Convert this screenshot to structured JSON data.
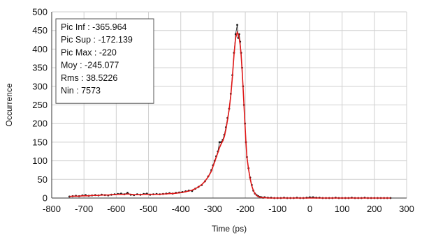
{
  "chart_data": {
    "type": "line",
    "title": "",
    "xlabel": "Time (ps)",
    "ylabel": "Occurrence",
    "xlim": [
      -800,
      300
    ],
    "ylim": [
      0,
      500
    ],
    "xticks": [
      -800,
      -700,
      -600,
      -500,
      -400,
      -300,
      -200,
      -100,
      0,
      100,
      200,
      300
    ],
    "yticks": [
      0,
      50,
      100,
      150,
      200,
      250,
      300,
      350,
      400,
      450,
      500
    ],
    "grid": true,
    "legend": "none",
    "colors": {
      "measured": "#1a1a1a",
      "fit": "#e01818",
      "grid": "#cfcfcf"
    },
    "stats_box": {
      "lines": [
        "Pic Inf : -365.964",
        "Pic Sup : -172.139",
        "Pic Max : -220",
        "Moy : -245.077",
        "Rms : 38.5226",
        "Nin : 7573"
      ]
    },
    "series": [
      {
        "style": "points",
        "x": [
          -745,
          -735,
          -725,
          -715,
          -705,
          -695,
          -685,
          -675,
          -665,
          -655,
          -645,
          -635,
          -625,
          -615,
          -605,
          -595,
          -585,
          -575,
          -565,
          -555,
          -545,
          -535,
          -525,
          -515,
          -505,
          -495,
          -485,
          -475,
          -465,
          -455,
          -445,
          -435,
          -425,
          -415,
          -405,
          -395,
          -385,
          -375,
          -365,
          -355,
          -345,
          -335,
          -325,
          -315,
          -305,
          -300,
          -295,
          -290,
          -285,
          -280,
          -275,
          -270,
          -265,
          -260,
          -255,
          -250,
          -245,
          -240,
          -235,
          -230,
          -225,
          -222,
          -219,
          -216,
          -213,
          -210,
          -207,
          -204,
          -201,
          -198,
          -195,
          -190,
          -185,
          -180,
          -175,
          -170,
          -165,
          -160,
          -155,
          -150,
          -145,
          -140,
          -130,
          -120,
          -110,
          -100,
          -90,
          -80,
          -70,
          -60,
          -50,
          -40,
          -30,
          -20,
          -10,
          0,
          10,
          20,
          30,
          40,
          50,
          60,
          70,
          80,
          90,
          100,
          110,
          120,
          130,
          140,
          150,
          160,
          170,
          180,
          190,
          200,
          210,
          220,
          230,
          240,
          250
        ],
        "y": [
          4,
          5,
          6,
          5,
          7,
          8,
          6,
          7,
          8,
          7,
          9,
          8,
          7,
          9,
          10,
          11,
          12,
          10,
          14,
          9,
          8,
          10,
          9,
          11,
          12,
          9,
          10,
          11,
          10,
          11,
          12,
          13,
          12,
          14,
          15,
          16,
          18,
          20,
          19,
          25,
          30,
          35,
          45,
          58,
          75,
          88,
          100,
          112,
          125,
          150,
          150,
          156,
          170,
          190,
          215,
          240,
          280,
          330,
          390,
          440,
          465,
          430,
          440,
          420,
          390,
          350,
          300,
          250,
          200,
          150,
          110,
          80,
          55,
          35,
          20,
          12,
          8,
          5,
          3,
          2,
          1,
          2,
          1,
          1,
          0,
          0,
          0,
          1,
          0,
          0,
          0,
          1,
          0,
          0,
          1,
          2,
          2,
          1,
          1,
          0,
          0,
          0,
          0,
          1,
          0,
          0,
          0,
          0,
          1,
          0,
          0,
          0,
          1,
          0,
          0,
          0,
          0,
          0,
          0,
          0,
          0
        ]
      },
      {
        "style": "line",
        "x": [
          -745,
          -735,
          -725,
          -715,
          -705,
          -695,
          -685,
          -675,
          -665,
          -655,
          -645,
          -635,
          -625,
          -615,
          -605,
          -595,
          -585,
          -575,
          -565,
          -555,
          -545,
          -535,
          -525,
          -515,
          -505,
          -495,
          -485,
          -475,
          -465,
          -455,
          -445,
          -435,
          -425,
          -415,
          -405,
          -395,
          -385,
          -375,
          -365,
          -355,
          -345,
          -335,
          -325,
          -315,
          -305,
          -300,
          -295,
          -290,
          -285,
          -280,
          -275,
          -270,
          -265,
          -260,
          -255,
          -250,
          -245,
          -240,
          -235,
          -230,
          -225,
          -222,
          -219,
          -216,
          -213,
          -210,
          -207,
          -204,
          -201,
          -198,
          -195,
          -190,
          -185,
          -180,
          -175,
          -170,
          -165,
          -160,
          -155,
          -150,
          -145,
          -140,
          -130,
          -120,
          -110,
          -100,
          -90,
          -80,
          -70,
          -60,
          -50,
          -40,
          -30,
          -20,
          -10,
          0,
          10,
          20,
          30,
          40,
          50,
          60,
          70,
          80,
          90,
          100,
          110,
          120,
          130,
          140,
          150,
          160,
          170,
          180,
          190,
          200,
          210,
          220,
          230,
          240,
          250
        ],
        "y": [
          4,
          5,
          5,
          5,
          6,
          6,
          6,
          7,
          7,
          7,
          8,
          8,
          8,
          9,
          9,
          10,
          10,
          10,
          11,
          10,
          9,
          9,
          9,
          10,
          10,
          10,
          10,
          10,
          10,
          11,
          11,
          12,
          12,
          13,
          14,
          15,
          17,
          19,
          21,
          25,
          30,
          36,
          45,
          57,
          72,
          85,
          97,
          110,
          122,
          135,
          145,
          153,
          165,
          185,
          210,
          238,
          275,
          325,
          385,
          430,
          445,
          440,
          430,
          412,
          385,
          345,
          298,
          248,
          198,
          150,
          110,
          78,
          52,
          33,
          20,
          12,
          7,
          4,
          2,
          1,
          1,
          1,
          0,
          0,
          0,
          0,
          0,
          0,
          0,
          0,
          0,
          0,
          0,
          0,
          0,
          0,
          0,
          0,
          0,
          0,
          0,
          0,
          0,
          0,
          0,
          0,
          0,
          0,
          0,
          0,
          0,
          0,
          0,
          0,
          0,
          0,
          0,
          0,
          0,
          0,
          0
        ]
      }
    ]
  }
}
